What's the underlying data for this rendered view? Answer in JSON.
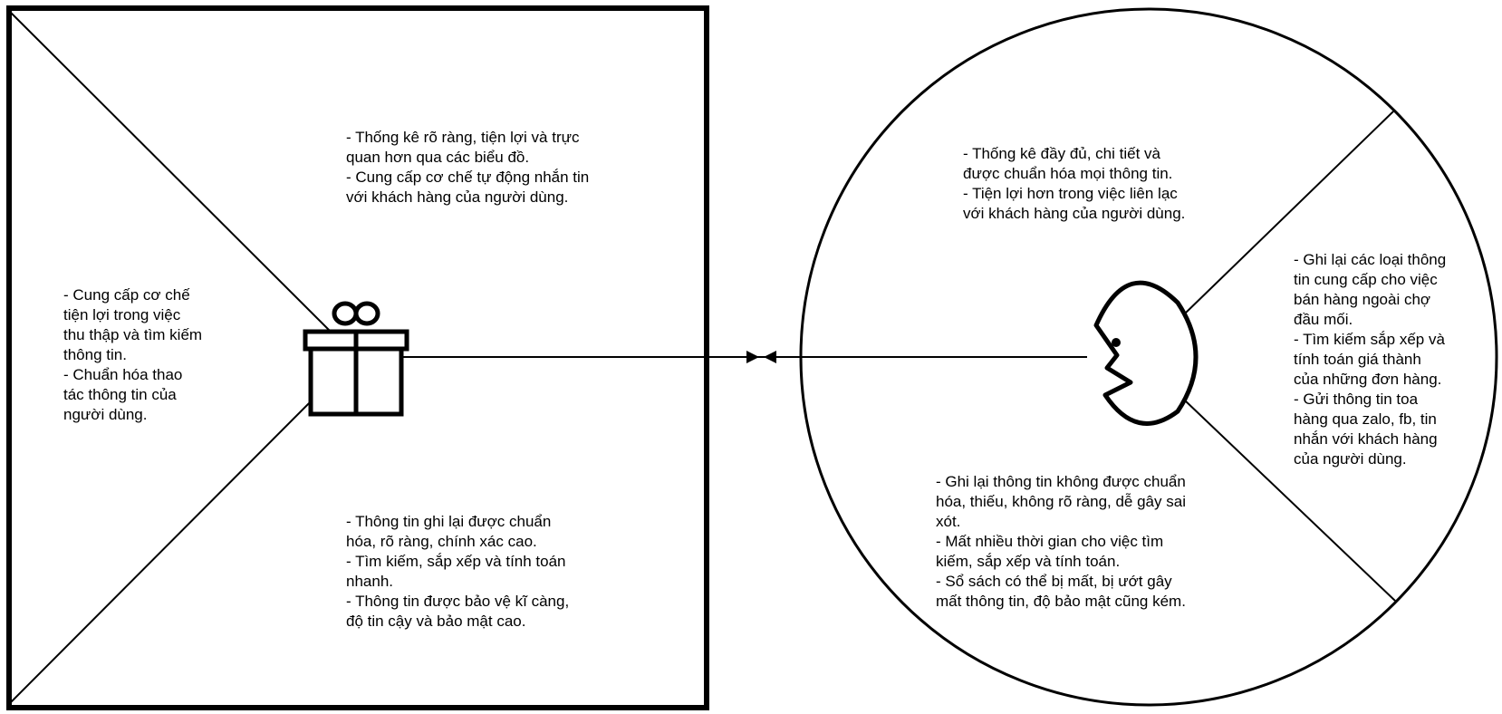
{
  "colors": {
    "stroke": "#000000",
    "background": "#ffffff"
  },
  "value_map": {
    "gain_creators": "- Thống kê rõ ràng, tiện lợi và trực\nquan hơn qua các biểu đồ.\n- Cung cấp cơ chế tự động nhắn tin\nvới khách hàng của người dùng.",
    "products_services": "- Cung cấp cơ chế\ntiện lợi trong việc\nthu thập và tìm kiếm\nthông tin.\n- Chuẩn hóa thao\ntác thông tin của\nngười dùng.",
    "pain_relievers": "- Thông tin ghi lại được chuẩn\nhóa, rõ ràng, chính xác cao.\n- Tìm kiếm, sắp xếp và tính toán\nnhanh.\n- Thông tin được bảo vệ kĩ càng,\nđộ tin cậy và bảo mật cao.",
    "icon": "gift-icon"
  },
  "customer_profile": {
    "gains": "- Thống kê đầy đủ, chi tiết và\nđược chuẩn hóa mọi thông tin.\n- Tiện lợi hơn trong việc liên lạc\nvới khách hàng của người dùng.",
    "customer_jobs": "- Ghi lại các loại thông\ntin cung cấp cho việc\nbán hàng ngoài chợ\nđầu mối.\n- Tìm kiếm sắp xếp và\ntính toán giá thành\ncủa những đơn hàng.\n- Gửi thông tin toa\nhàng qua zalo, fb, tin\nnhắn với khách hàng\ncủa người dùng.",
    "pains": "- Ghi lại thông tin không được chuẩn\nhóa, thiếu, không rõ ràng, dễ gây sai\nxót.\n- Mất nhiều thời gian cho việc tìm\nkiếm, sắp xếp và tính toán.\n- Sổ sách có thể bị mất, bị ướt gây\nmất thông tin, độ bảo mật cũng kém.",
    "icon": "face-icon"
  }
}
